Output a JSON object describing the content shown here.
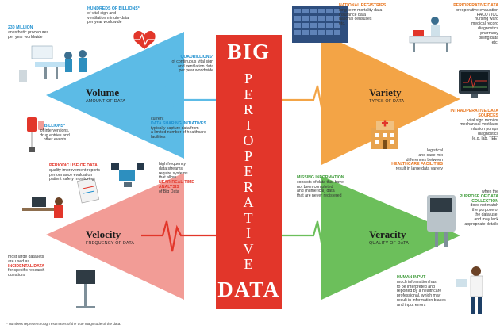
{
  "center": {
    "top": "BIG",
    "vertical": "PERIOPERATIVE",
    "bottom": "DATA"
  },
  "quadrants": {
    "volume": {
      "title": "Volume",
      "subtitle": "AMOUNT OF DATA"
    },
    "variety": {
      "title": "Variety",
      "subtitle": "TYPES OF DATA"
    },
    "velocity": {
      "title": "Velocity",
      "subtitle": "FREQUENCY OF DATA"
    },
    "veracity": {
      "title": "Veracity",
      "subtitle": "QUALITY OF DATA"
    }
  },
  "annotations": {
    "hundreds_billions": {
      "head": "HUNDREDS OF BILLIONS*",
      "lines": [
        "of vital sign and",
        "ventilation minute-data",
        "per year worldwide"
      ]
    },
    "million": {
      "head": "230 MILLION",
      "lines": [
        "anesthetic procedures",
        "per year worldwide"
      ]
    },
    "quadrillions": {
      "head": "QUADRILLIONS*",
      "lines": [
        "of continuous vital sign",
        "and ventilation data",
        "per year worldwide"
      ]
    },
    "billions": {
      "head": "BILLIONS*",
      "lines": [
        "of interventions,",
        "drug entries and",
        "other events"
      ]
    },
    "sharing": {
      "pre": "current",
      "head": "DATA SHARING INITIATIVES",
      "lines": [
        "typically capture data from",
        "a limited number of healthcare",
        "facilities"
      ]
    },
    "national": {
      "head": "NATIONAL REGISTRIES",
      "lines": [
        "long term mortality data",
        "insurance data",
        "national censuses",
        "etc."
      ]
    },
    "periop_eval": {
      "head": "PERIOPERATIVE DATA",
      "lines": [
        "preoperative evaluation",
        "PACU / ICU",
        "nursing ward",
        "medical record",
        "diagnostics",
        "pharmacy",
        "billing data",
        "etc."
      ]
    },
    "intraop": {
      "head": "INTRAOPERATIVE DATA SOURCES",
      "lines": [
        "vital sign monitor",
        "mechanical ventilator",
        "infusion pumps",
        "diagnostics",
        "(e.g. lab, TEE)"
      ]
    },
    "facilities": {
      "pre": [
        "logistical",
        "and case mix",
        "differences between"
      ],
      "head": "HEALTHCARE FACILITIES",
      "lines": [
        "result in large data variety"
      ]
    },
    "highfreq": {
      "lines": [
        "high frequency",
        "data streams",
        "require systems",
        "that allow"
      ],
      "head": "NEAR-REAL-TIME ANALYSIS",
      "post": "of Big Data"
    },
    "periodic": {
      "head": "PERIODIC USE OF DATA",
      "lines": [
        "quality improvement reports",
        "performance evaluation",
        "patient safety monitoring"
      ]
    },
    "incidental": {
      "pre": [
        "most large datasets",
        "are used as"
      ],
      "head": "INCIDENTAL DATA",
      "lines": [
        "for specific research",
        "questions"
      ]
    },
    "missing": {
      "head": "MISSING INFORMATION",
      "lines": [
        "consists of data that have",
        "not been completed",
        "and (numerical) data",
        "that are never registered"
      ]
    },
    "purpose": {
      "pre": "when the",
      "head": "PURPOSE OF DATA COLLECTION",
      "lines": [
        "does not match",
        "the purpose of",
        "the data use,",
        "and may lack",
        "appropriate details"
      ]
    },
    "human": {
      "head": "HUMAN INPUT",
      "lines": [
        "much information has",
        "to be interpreted and",
        "reported by a healthcare",
        "professional, which may",
        "result in information biases",
        "and input errors"
      ]
    }
  },
  "footnote": "* numbers represent rough estimates of the true magnitude of the data.",
  "colors": {
    "blue": "#5cbbe6",
    "orange": "#f3a446",
    "red_quad": "#f29c96",
    "green": "#6cbf5b",
    "center_red": "#e2362a"
  }
}
